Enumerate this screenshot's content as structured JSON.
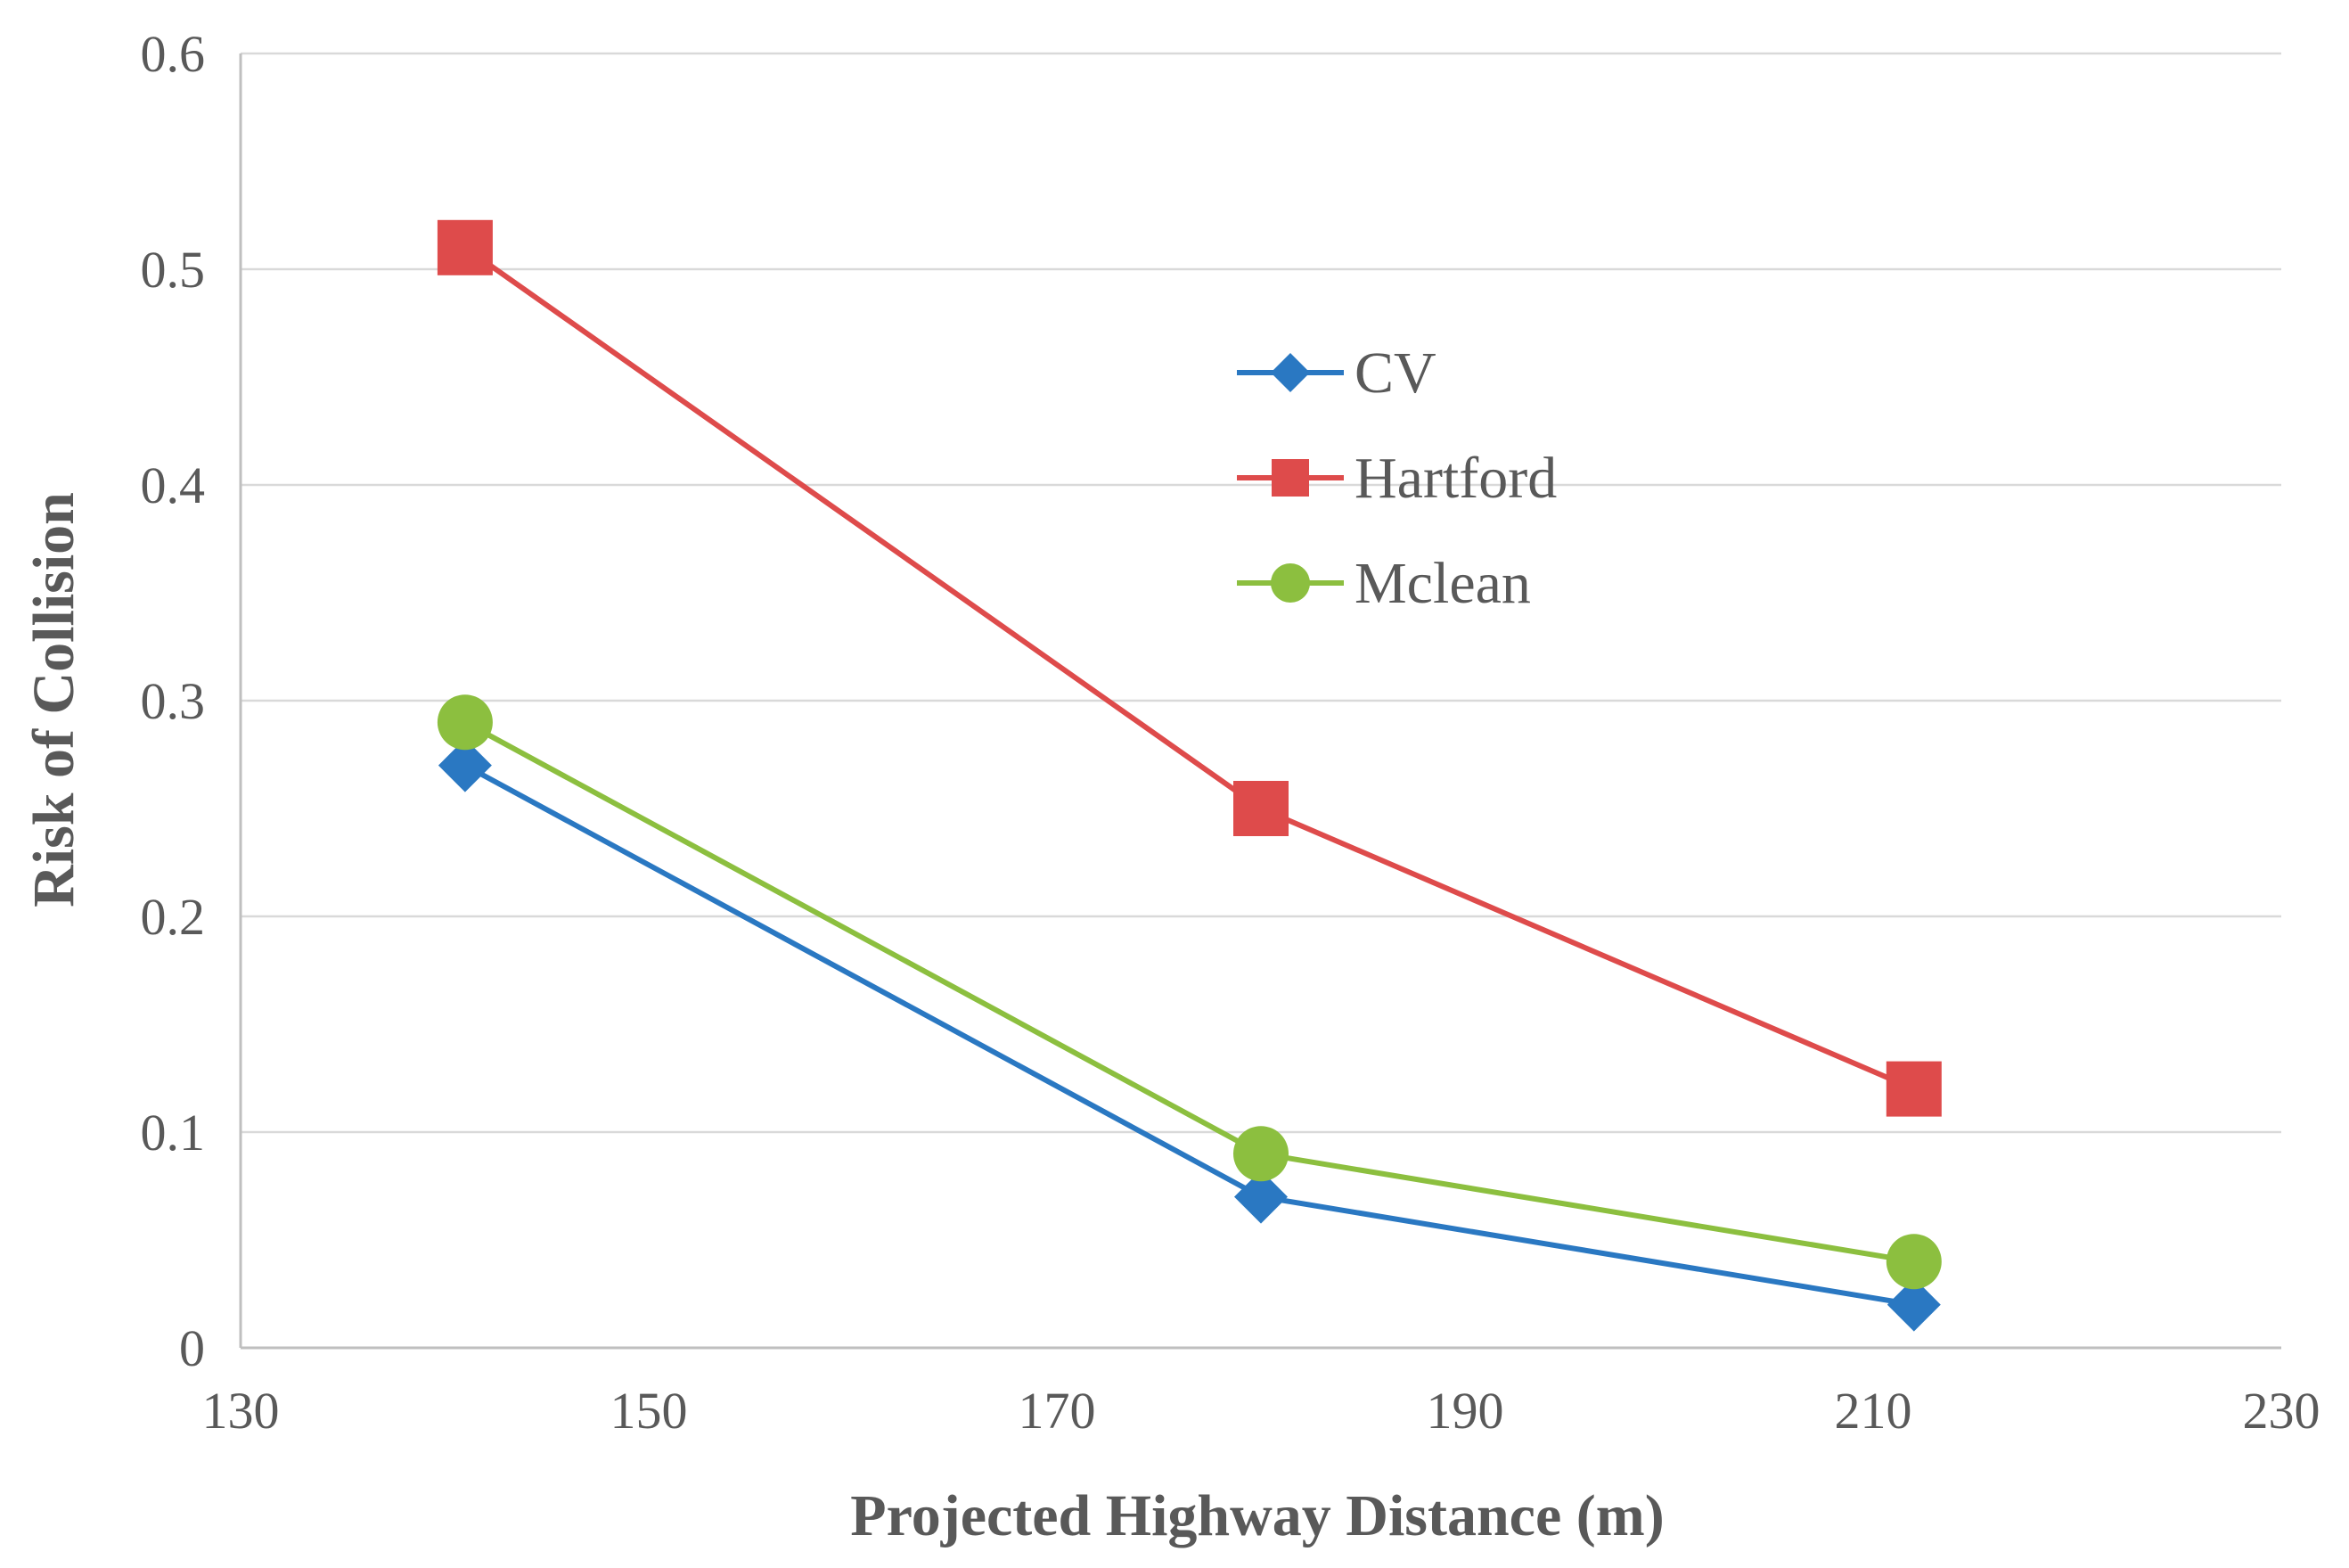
{
  "chart_data": {
    "type": "line",
    "title": "",
    "xlabel": "Projected Highway Distance (m)",
    "ylabel": "Risk of Collision",
    "xlim": [
      130,
      230
    ],
    "ylim": [
      0,
      0.6
    ],
    "x_ticks": [
      "130",
      "150",
      "170",
      "190",
      "210",
      "230"
    ],
    "y_ticks": [
      "0",
      "0.1",
      "0.2",
      "0.3",
      "0.4",
      "0.5",
      "0.6"
    ],
    "grid": "horizontal",
    "legend_position": "center",
    "series": [
      {
        "name": "CV",
        "color": "#2a78c2",
        "marker": "diamond",
        "points": [
          {
            "x": 141,
            "y": 0.27
          },
          {
            "x": 180,
            "y": 0.07
          },
          {
            "x": 212,
            "y": 0.02
          }
        ]
      },
      {
        "name": "Hartford",
        "color": "#de4b4b",
        "marker": "square",
        "points": [
          {
            "x": 141,
            "y": 0.51
          },
          {
            "x": 180,
            "y": 0.25
          },
          {
            "x": 212,
            "y": 0.12
          }
        ]
      },
      {
        "name": "Mclean",
        "color": "#8cbf3f",
        "marker": "circle",
        "points": [
          {
            "x": 141,
            "y": 0.29
          },
          {
            "x": 180,
            "y": 0.09
          },
          {
            "x": 212,
            "y": 0.04
          }
        ]
      }
    ]
  }
}
